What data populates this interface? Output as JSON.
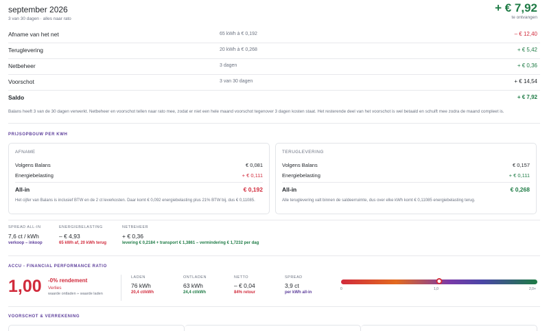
{
  "header": {
    "title": "september 2026",
    "subtitle": "3 van 30 dagen · alles naar rato",
    "total": "+ € 7,92",
    "total_label": "te ontvangen"
  },
  "rows": [
    {
      "label": "Afname van het net",
      "detail": "65 kWh à € 0,192",
      "amount": "– € 12,40",
      "tone": "red"
    },
    {
      "label": "Teruglevering",
      "detail": "20 kWh à € 0,268",
      "amount": "+ € 5,42",
      "tone": "green"
    },
    {
      "label": "Netbeheer",
      "detail": "3 dagen",
      "amount": "+ € 0,36",
      "tone": "green"
    },
    {
      "label": "Voorschot",
      "detail": "3 van 30 dagen",
      "amount": "+ € 14,54",
      "tone": "dark"
    },
    {
      "label": "Saldo",
      "detail": "",
      "amount": "+ € 7,92",
      "tone": "green"
    }
  ],
  "note": "Balans heeft 3 van de 30 dagen verwerkt. Netbeheer en voorschot tellen naar rato mee, zodat er niet een hele maand voorschot tegenover 3 dagen kosten staat. Het resterende deel van het voorschot is wel betaald en schuift mee zodra de maand compleet is.",
  "price": {
    "heading": "PRIJSOPBOUW PER KWH",
    "afname": {
      "title": "AFNAME",
      "lines": [
        {
          "label": "Volgens Balans",
          "value": "€ 0,081",
          "tone": "dark"
        },
        {
          "label": "Energiebelasting",
          "value": "+ € 0,111",
          "tone": "red"
        }
      ],
      "allin_label": "All-in",
      "allin_value": "€ 0,192",
      "footnote": "Het cijfer van Balans is inclusief BTW en de 2 ct leverkosten. Daar komt € 0,092 energiebelasting plus 21% BTW bij, dus € 0,11085."
    },
    "teruglevering": {
      "title": "TERUGLEVERING",
      "lines": [
        {
          "label": "Volgens Balans",
          "value": "€ 0,157",
          "tone": "dark"
        },
        {
          "label": "Energiebelasting",
          "value": "+ € 0,111",
          "tone": "green"
        }
      ],
      "allin_label": "All-in",
      "allin_value": "€ 0,268",
      "footnote": "Alle teruglevering valt binnen de saldeerruimte, dus over elke kWh komt € 0,11085 energiebelasting terug."
    }
  },
  "stats": [
    {
      "head": "SPREAD ALL-IN",
      "value": "7,6 ct / kWh",
      "sub": "verkoop – inkoop",
      "tone": "purple"
    },
    {
      "head": "ENERGIEBELASTING",
      "value": "– € 4,93",
      "sub": "65 kWh af, 20 kWh terug",
      "tone": "red"
    },
    {
      "head": "NETBEHEER",
      "value": "+ € 0,36",
      "sub": "levering € 0,2184 + transport € 1,3861 – vermindering € 1,7232 per dag",
      "tone": "green"
    }
  ],
  "accu": {
    "heading": "ACCU - FINANCIAL PERFORMANCE RATIO",
    "ratio": "1,00",
    "rendement": "-0% rendement",
    "verlies": "Verlies",
    "formula": "waarde ontladen ÷ waarde laden",
    "kpis": [
      {
        "head": "LADEN",
        "value": "76 kWh",
        "sub": "20,4 ct/kWh",
        "tone": "red"
      },
      {
        "head": "ONTLADEN",
        "value": "63 kWh",
        "sub": "24,4 ct/kWh",
        "tone": "green"
      },
      {
        "head": "NETTO",
        "value": "– € 0,04",
        "sub": "84% retour",
        "tone": "red"
      },
      {
        "head": "SPREAD",
        "value": "3,9 ct",
        "sub": "per kWh all-in",
        "tone": "purple"
      }
    ],
    "scale_ticks": [
      "0",
      "1,0",
      "2,0+"
    ],
    "marker_value": 1.0,
    "scale_max": 2.0
  },
  "voorschot": {
    "heading": "VOORSCHOT & VERREKENING"
  }
}
